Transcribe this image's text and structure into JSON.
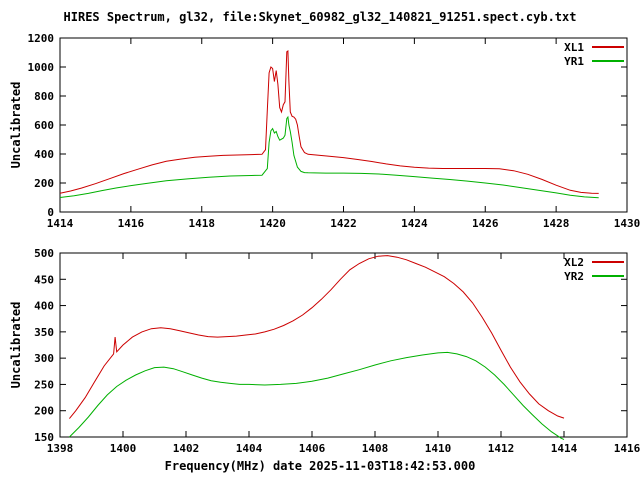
{
  "chart_data": [
    {
      "type": "line",
      "title": "HIRES Spectrum, gl32, file:Skynet_60982_gl32_140821_91251.spect.cyb.txt",
      "ylabel": "Uncalibrated",
      "xlim": [
        1414,
        1430
      ],
      "ylim": [
        0,
        1200
      ],
      "x_ticks": [
        1414,
        1416,
        1418,
        1420,
        1422,
        1424,
        1426,
        1428,
        1430
      ],
      "y_ticks": [
        0,
        200,
        400,
        600,
        800,
        1000,
        1200
      ],
      "legend_position": "top-right",
      "grid": false,
      "series": [
        {
          "name": "XL1",
          "color": "#cc0000",
          "points": [
            [
              1414.0,
              130
            ],
            [
              1414.3,
              145
            ],
            [
              1414.6,
              165
            ],
            [
              1415.0,
              195
            ],
            [
              1415.4,
              230
            ],
            [
              1415.8,
              265
            ],
            [
              1416.2,
              295
            ],
            [
              1416.6,
              325
            ],
            [
              1417.0,
              350
            ],
            [
              1417.4,
              365
            ],
            [
              1417.8,
              378
            ],
            [
              1418.2,
              385
            ],
            [
              1418.6,
              390
            ],
            [
              1419.0,
              393
            ],
            [
              1419.4,
              396
            ],
            [
              1419.7,
              398
            ],
            [
              1419.8,
              430
            ],
            [
              1419.85,
              700
            ],
            [
              1419.9,
              960
            ],
            [
              1419.95,
              1000
            ],
            [
              1420.0,
              990
            ],
            [
              1420.05,
              900
            ],
            [
              1420.1,
              975
            ],
            [
              1420.15,
              880
            ],
            [
              1420.2,
              720
            ],
            [
              1420.25,
              690
            ],
            [
              1420.3,
              740
            ],
            [
              1420.35,
              760
            ],
            [
              1420.4,
              1105
            ],
            [
              1420.43,
              1110
            ],
            [
              1420.46,
              900
            ],
            [
              1420.5,
              690
            ],
            [
              1420.55,
              660
            ],
            [
              1420.6,
              655
            ],
            [
              1420.65,
              640
            ],
            [
              1420.7,
              600
            ],
            [
              1420.75,
              520
            ],
            [
              1420.8,
              450
            ],
            [
              1420.9,
              410
            ],
            [
              1421.0,
              398
            ],
            [
              1421.3,
              392
            ],
            [
              1421.6,
              385
            ],
            [
              1422.0,
              375
            ],
            [
              1422.4,
              362
            ],
            [
              1422.8,
              348
            ],
            [
              1423.2,
              332
            ],
            [
              1423.6,
              318
            ],
            [
              1424.0,
              308
            ],
            [
              1424.4,
              303
            ],
            [
              1424.8,
              300
            ],
            [
              1425.2,
              300
            ],
            [
              1425.6,
              300
            ],
            [
              1426.0,
              300
            ],
            [
              1426.4,
              298
            ],
            [
              1426.8,
              285
            ],
            [
              1427.2,
              260
            ],
            [
              1427.6,
              225
            ],
            [
              1428.0,
              185
            ],
            [
              1428.4,
              150
            ],
            [
              1428.7,
              135
            ],
            [
              1429.0,
              130
            ],
            [
              1429.2,
              128
            ]
          ]
        },
        {
          "name": "YR1",
          "color": "#00b000",
          "points": [
            [
              1414.0,
              100
            ],
            [
              1414.4,
              112
            ],
            [
              1414.8,
              128
            ],
            [
              1415.2,
              148
            ],
            [
              1415.6,
              166
            ],
            [
              1416.0,
              182
            ],
            [
              1416.4,
              196
            ],
            [
              1417.0,
              215
            ],
            [
              1417.6,
              228
            ],
            [
              1418.2,
              240
            ],
            [
              1418.8,
              248
            ],
            [
              1419.4,
              252
            ],
            [
              1419.7,
              254
            ],
            [
              1419.85,
              300
            ],
            [
              1419.9,
              480
            ],
            [
              1419.95,
              560
            ],
            [
              1420.0,
              575
            ],
            [
              1420.05,
              545
            ],
            [
              1420.1,
              555
            ],
            [
              1420.15,
              520
            ],
            [
              1420.2,
              495
            ],
            [
              1420.3,
              510
            ],
            [
              1420.35,
              530
            ],
            [
              1420.4,
              645
            ],
            [
              1420.43,
              655
            ],
            [
              1420.46,
              600
            ],
            [
              1420.5,
              555
            ],
            [
              1420.55,
              480
            ],
            [
              1420.6,
              390
            ],
            [
              1420.7,
              310
            ],
            [
              1420.8,
              280
            ],
            [
              1420.9,
              272
            ],
            [
              1421.0,
              270
            ],
            [
              1421.5,
              268
            ],
            [
              1422.0,
              268
            ],
            [
              1422.5,
              266
            ],
            [
              1423.0,
              262
            ],
            [
              1423.5,
              254
            ],
            [
              1424.0,
              244
            ],
            [
              1424.5,
              234
            ],
            [
              1425.0,
              224
            ],
            [
              1425.5,
              213
            ],
            [
              1426.0,
              200
            ],
            [
              1426.5,
              186
            ],
            [
              1427.0,
              168
            ],
            [
              1427.5,
              150
            ],
            [
              1428.0,
              132
            ],
            [
              1428.4,
              116
            ],
            [
              1428.8,
              104
            ],
            [
              1429.2,
              98
            ]
          ]
        }
      ]
    },
    {
      "type": "line",
      "xlabel": "Frequency(MHz) date 2025-11-03T18:42:53.000",
      "ylabel": "Uncalibrated",
      "xlim": [
        1398,
        1416
      ],
      "ylim": [
        150,
        500
      ],
      "x_ticks": [
        1398,
        1400,
        1402,
        1404,
        1406,
        1408,
        1410,
        1412,
        1414,
        1416
      ],
      "y_ticks": [
        150,
        200,
        250,
        300,
        350,
        400,
        450,
        500
      ],
      "legend_position": "top-right",
      "grid": false,
      "series": [
        {
          "name": "XL2",
          "color": "#cc0000",
          "points": [
            [
              1398.3,
              185
            ],
            [
              1398.5,
              200
            ],
            [
              1398.8,
              225
            ],
            [
              1399.1,
              255
            ],
            [
              1399.4,
              285
            ],
            [
              1399.7,
              308
            ],
            [
              1399.75,
              340
            ],
            [
              1399.8,
              312
            ],
            [
              1400.0,
              325
            ],
            [
              1400.3,
              340
            ],
            [
              1400.6,
              350
            ],
            [
              1400.9,
              356
            ],
            [
              1401.2,
              358
            ],
            [
              1401.5,
              356
            ],
            [
              1401.8,
              352
            ],
            [
              1402.1,
              348
            ],
            [
              1402.4,
              344
            ],
            [
              1402.7,
              341
            ],
            [
              1403.0,
              340
            ],
            [
              1403.3,
              341
            ],
            [
              1403.6,
              342
            ],
            [
              1403.9,
              344
            ],
            [
              1404.2,
              346
            ],
            [
              1404.5,
              350
            ],
            [
              1404.8,
              355
            ],
            [
              1405.1,
              362
            ],
            [
              1405.4,
              371
            ],
            [
              1405.7,
              382
            ],
            [
              1406.0,
              396
            ],
            [
              1406.3,
              412
            ],
            [
              1406.6,
              430
            ],
            [
              1406.9,
              450
            ],
            [
              1407.2,
              468
            ],
            [
              1407.5,
              480
            ],
            [
              1407.8,
              489
            ],
            [
              1408.1,
              494
            ],
            [
              1408.4,
              495
            ],
            [
              1408.7,
              492
            ],
            [
              1409.0,
              487
            ],
            [
              1409.3,
              480
            ],
            [
              1409.6,
              473
            ],
            [
              1409.9,
              464
            ],
            [
              1410.2,
              455
            ],
            [
              1410.5,
              442
            ],
            [
              1410.8,
              426
            ],
            [
              1411.1,
              405
            ],
            [
              1411.4,
              378
            ],
            [
              1411.7,
              348
            ],
            [
              1412.0,
              315
            ],
            [
              1412.3,
              283
            ],
            [
              1412.6,
              255
            ],
            [
              1412.9,
              232
            ],
            [
              1413.2,
              213
            ],
            [
              1413.5,
              200
            ],
            [
              1413.8,
              190
            ],
            [
              1414.0,
              186
            ]
          ]
        },
        {
          "name": "YR2",
          "color": "#00b000",
          "points": [
            [
              1398.3,
              150
            ],
            [
              1398.6,
              168
            ],
            [
              1398.9,
              188
            ],
            [
              1399.2,
              210
            ],
            [
              1399.5,
              230
            ],
            [
              1399.8,
              246
            ],
            [
              1400.1,
              258
            ],
            [
              1400.4,
              268
            ],
            [
              1400.7,
              276
            ],
            [
              1401.0,
              282
            ],
            [
              1401.3,
              283
            ],
            [
              1401.6,
              280
            ],
            [
              1401.9,
              274
            ],
            [
              1402.2,
              268
            ],
            [
              1402.5,
              262
            ],
            [
              1402.8,
              257
            ],
            [
              1403.1,
              254
            ],
            [
              1403.4,
              252
            ],
            [
              1403.7,
              250
            ],
            [
              1404.0,
              250
            ],
            [
              1404.5,
              249
            ],
            [
              1405.0,
              250
            ],
            [
              1405.5,
              252
            ],
            [
              1406.0,
              256
            ],
            [
              1406.5,
              262
            ],
            [
              1407.0,
              270
            ],
            [
              1407.5,
              278
            ],
            [
              1408.0,
              287
            ],
            [
              1408.5,
              295
            ],
            [
              1409.0,
              301
            ],
            [
              1409.5,
              306
            ],
            [
              1410.0,
              310
            ],
            [
              1410.3,
              311
            ],
            [
              1410.6,
              308
            ],
            [
              1410.9,
              303
            ],
            [
              1411.2,
              295
            ],
            [
              1411.5,
              283
            ],
            [
              1411.8,
              268
            ],
            [
              1412.1,
              250
            ],
            [
              1412.4,
              230
            ],
            [
              1412.7,
              210
            ],
            [
              1413.0,
              192
            ],
            [
              1413.3,
              175
            ],
            [
              1413.6,
              160
            ],
            [
              1413.9,
              148
            ],
            [
              1414.0,
              145
            ]
          ]
        }
      ]
    }
  ]
}
